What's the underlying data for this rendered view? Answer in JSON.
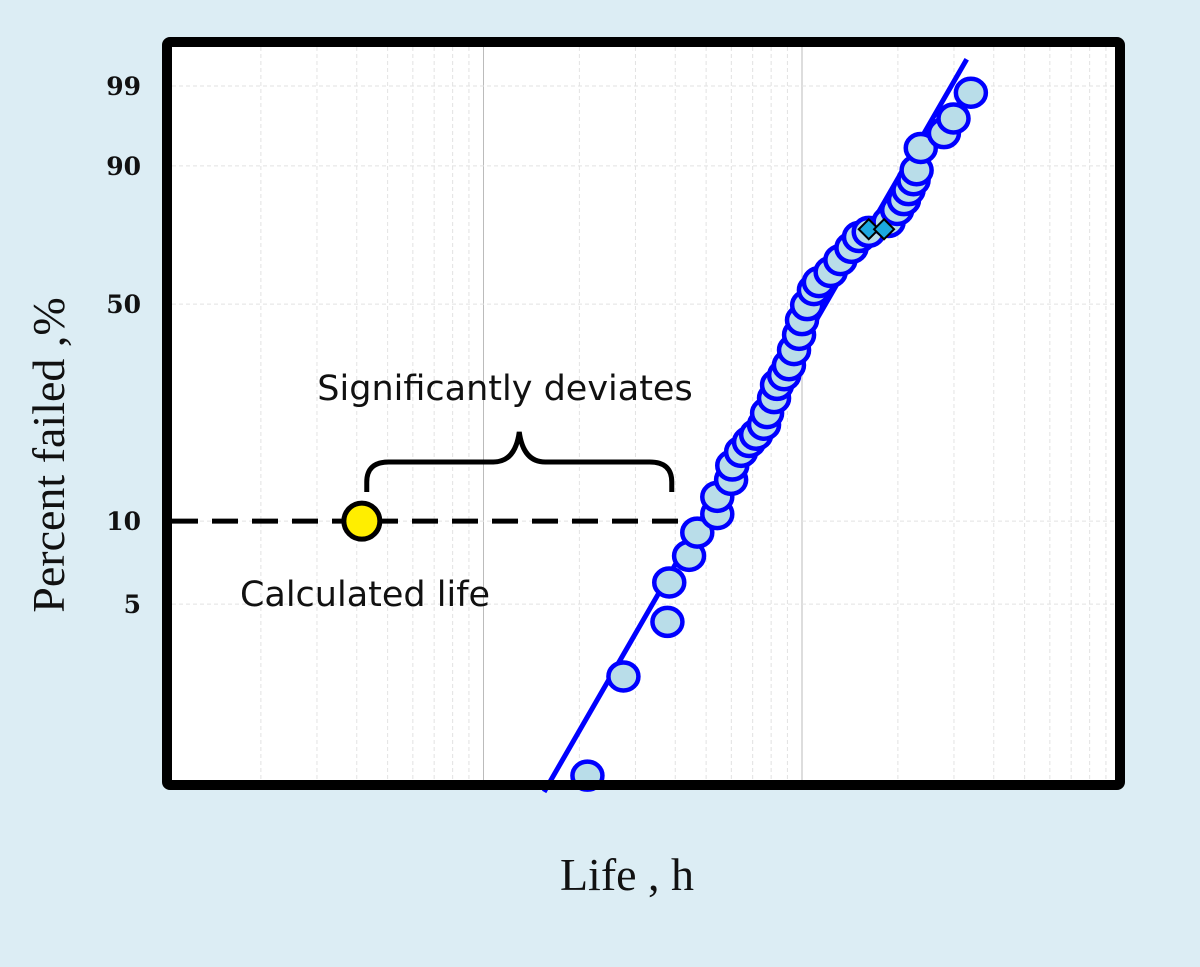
{
  "chart_data": {
    "type": "scatter",
    "title": "",
    "xlabel": "Life , h",
    "ylabel": "Percent failed ,%",
    "xscale": "log",
    "yscale": "weibull-probability",
    "xlim": [
      1,
      1000
    ],
    "ylim": [
      1,
      99.9
    ],
    "x_tick_labels_printed": false,
    "yticks": [
      99,
      90,
      50,
      10,
      5
    ],
    "grid": true,
    "colors": {
      "background": "#dcedf4",
      "marker_fill": "#b9dde9",
      "marker_edge": "#0000ff",
      "fit_line": "#0000ff",
      "highlight_diamond": "#1ba8e0",
      "calculated_point": "#ffee00"
    },
    "series": [
      {
        "marker": "circle",
        "points": [
          [
            21.2,
            1.15
          ],
          [
            27.5,
            2.7
          ],
          [
            37.8,
            4.3
          ],
          [
            38.3,
            6.0
          ],
          [
            44.2,
            7.5
          ],
          [
            46.9,
            9.1
          ],
          [
            54.2,
            10.6
          ],
          [
            54.2,
            12.2
          ],
          [
            59.9,
            14.0
          ],
          [
            60.4,
            15.7
          ],
          [
            64.4,
            17.5
          ],
          [
            68.2,
            18.9
          ],
          [
            71.8,
            20.0
          ],
          [
            76.0,
            21.6
          ],
          [
            77.7,
            23.6
          ],
          [
            81.7,
            26.4
          ],
          [
            83.5,
            29.1
          ],
          [
            87.9,
            31.2
          ],
          [
            91.0,
            33.5
          ],
          [
            94.4,
            37.2
          ],
          [
            97.9,
            41.2
          ],
          [
            100,
            45.3
          ],
          [
            103.8,
            49.7
          ],
          [
            109,
            54.3
          ],
          [
            113,
            56.8
          ],
          [
            123,
            60.0
          ],
          [
            132,
            63.8
          ],
          [
            143,
            67.7
          ],
          [
            151,
            71.1
          ],
          [
            162,
            72.7
          ],
          [
            187,
            75.7
          ],
          [
            199,
            79.2
          ],
          [
            209,
            81.9
          ],
          [
            216,
            84.5
          ],
          [
            224,
            86.9
          ],
          [
            229,
            89.1
          ],
          [
            236,
            93.2
          ],
          [
            279,
            95.3
          ],
          [
            299,
            96.9
          ],
          [
            339,
            98.7
          ]
        ]
      },
      {
        "marker": "diamond",
        "points": [
          [
            162,
            73.5
          ],
          [
            181,
            73.5
          ]
        ]
      }
    ],
    "fit_line": {
      "from": [
        15.5,
        1.0
      ],
      "to": [
        329,
        99.7
      ]
    },
    "calculated_life": {
      "x": 4.15,
      "y": 10,
      "label": "Calculated life"
    },
    "reference_line": {
      "y": 10,
      "x_from": 1,
      "x_to": 54,
      "style": "dashed"
    },
    "annotations": [
      {
        "text": "Significantly deviates",
        "type": "brace",
        "x_from": 4.3,
        "x_to": 39
      }
    ]
  }
}
